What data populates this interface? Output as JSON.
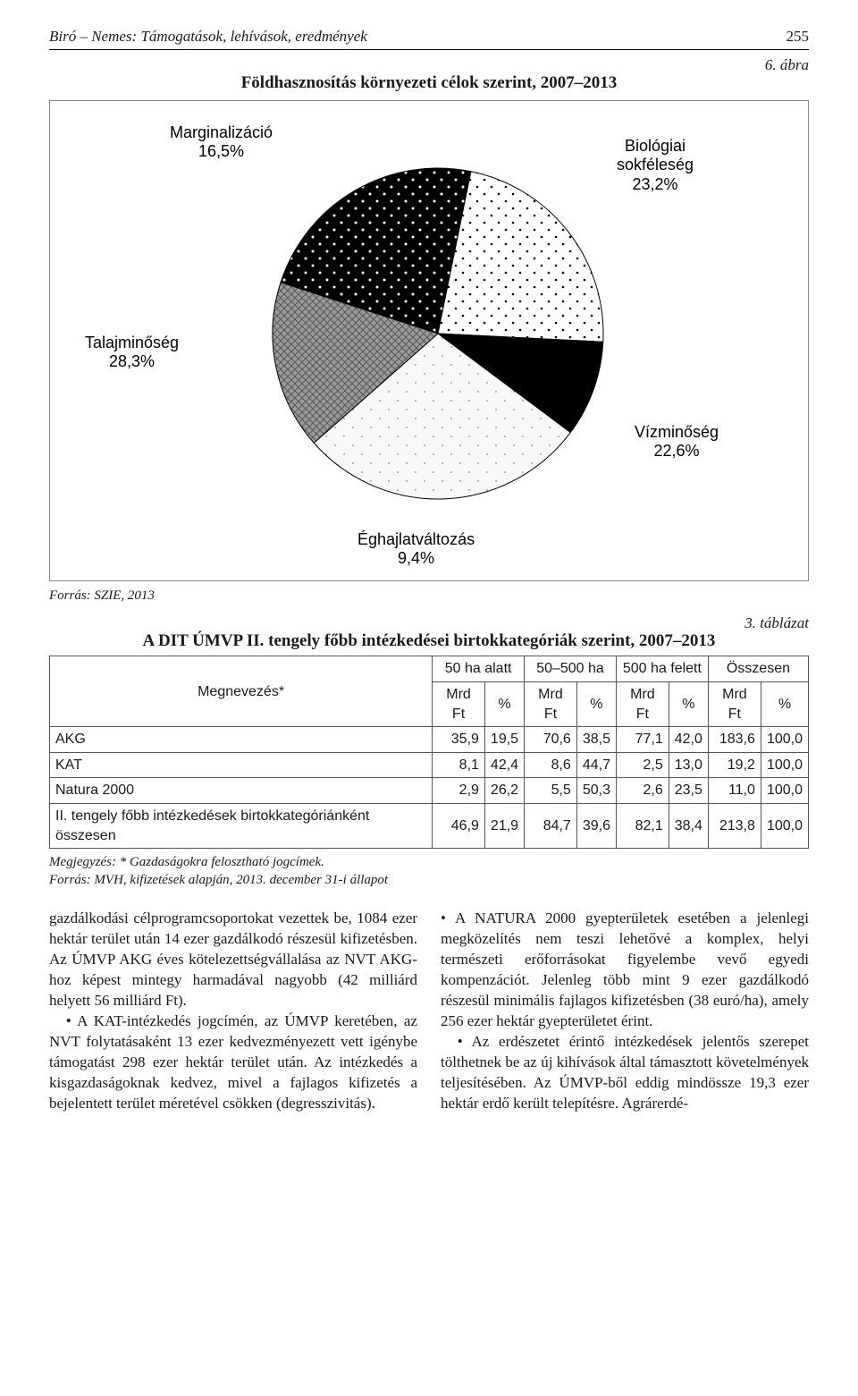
{
  "runningHead": {
    "left": "Biró – Nemes: Támogatások, lehívások, eredmények",
    "page": "255"
  },
  "figure": {
    "number": "6. ábra",
    "caption": "Földhasznosítás környezeti célok szerint, 2007–2013",
    "source": "Forrás: SZIE, 2013",
    "chart": {
      "type": "pie",
      "background_color": "#ffffff",
      "label_fontsize": 18,
      "label_color": "#000000",
      "slice_order_clockwise_from_top": [
        "Biológiai sokféleség",
        "Vízminőség",
        "Éghajlatváltozás",
        "Talajminőség",
        "Marginalizáció"
      ],
      "slices": {
        "biologiai": {
          "label_line1": "Biológiai",
          "label_line2": "sokféleség",
          "value_label": "23,2%",
          "value": 23.2,
          "fill": "#000000",
          "pattern": "white-dots"
        },
        "vizminoseg": {
          "label": "Vízminőség",
          "value_label": "22,6%",
          "value": 22.6,
          "fill": "#ffffff",
          "pattern": "black-dots"
        },
        "eghajlat": {
          "label": "Éghajlatváltozás",
          "value_label": "9,4%",
          "value": 9.4,
          "fill": "#000000",
          "pattern": "solid"
        },
        "talaj": {
          "label": "Talajminőség",
          "value_label": "28,3%",
          "value": 28.3,
          "fill": "#f4f4f4",
          "pattern": "sparse-dots"
        },
        "marginal": {
          "label": "Marginalizáció",
          "value_label": "16,5%",
          "value": 16.5,
          "fill": "#808080",
          "pattern": "crosshatch"
        }
      }
    }
  },
  "table": {
    "number": "3. táblázat",
    "caption": "A DIT ÚMVP II. tengely főbb intézkedései birtokkategóriák szerint, 2007–2013",
    "col0": "Megnevezés*",
    "groups": [
      "50 ha alatt",
      "50–500 ha",
      "500 ha felett",
      "Összesen"
    ],
    "subcols": [
      "Mrd Ft",
      "%",
      "Mrd Ft",
      "%",
      "Mrd Ft",
      "%",
      "Mrd Ft",
      "%"
    ],
    "rows": [
      {
        "label": "AKG",
        "cells": [
          "35,9",
          "19,5",
          "70,6",
          "38,5",
          "77,1",
          "42,0",
          "183,6",
          "100,0"
        ]
      },
      {
        "label": "KAT",
        "cells": [
          "8,1",
          "42,4",
          "8,6",
          "44,7",
          "2,5",
          "13,0",
          "19,2",
          "100,0"
        ]
      },
      {
        "label": "Natura 2000",
        "cells": [
          "2,9",
          "26,2",
          "5,5",
          "50,3",
          "2,6",
          "23,5",
          "11,0",
          "100,0"
        ]
      },
      {
        "label": "II. tengely főbb intézkedések birtokkategóriánként összesen",
        "cells": [
          "46,9",
          "21,9",
          "84,7",
          "39,6",
          "82,1",
          "38,4",
          "213,8",
          "100,0"
        ]
      }
    ],
    "note_line1": "Megjegyzés: * Gazdaságokra felosztható jogcímek.",
    "note_line2": "Forrás: MVH, kifizetések alapján, 2013. december 31-i állapot"
  },
  "body": {
    "left": {
      "p1": "gazdálkodási célprogramcsoportokat vezettek be, 1084 ezer hektár terület után 14 ezer gazdálkodó részesül kifizetésben. Az ÚMVP AKG éves kötelezettségvállalása az NVT AKG-hoz képest mintegy harmadával nagyobb (42 milliárd helyett 56 milliárd Ft).",
      "p2": "• A KAT-intézkedés jogcímén, az ÚMVP keretében, az NVT folytatásaként 13 ezer kedvezményezett vett igénybe támogatást 298 ezer hektár terület után. Az intézkedés a kisgazdaságoknak kedvez, mivel a fajlagos kifizetés a bejelentett terület méretével csökken (degresszivitás)."
    },
    "right": {
      "p1": "• A NATURA 2000 gyepterületek esetében a jelenlegi megközelítés nem teszi lehetővé a komplex, helyi természeti erőforrásokat figyelembe vevő egyedi kompenzációt. Jelenleg több mint 9 ezer gazdálkodó részesül minimális fajlagos kifizetésben (38 euró/ha), amely 256 ezer hektár gyepterületet érint.",
      "p2": "• Az erdészetet érintő intézkedések jelentős szerepet tölthetnek be az új kihívások által támasztott követelmények teljesítésében. Az ÚMVP-ből eddig mindössze 19,3 ezer hektár erdő került telepítésre. Agrárerdé-"
    }
  }
}
